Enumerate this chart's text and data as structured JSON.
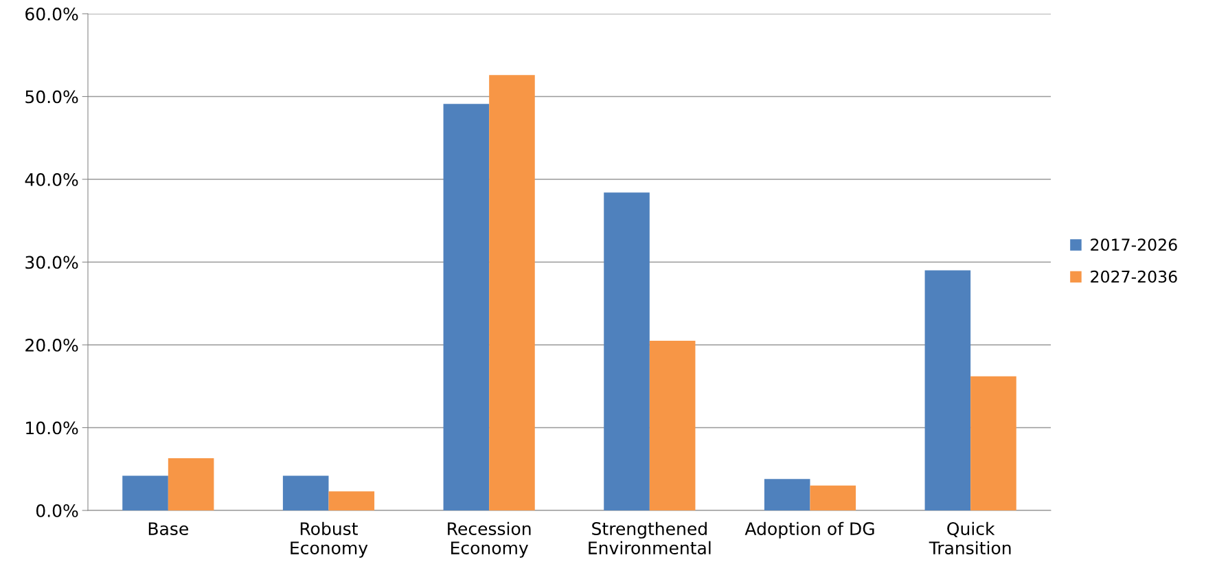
{
  "chart_data": {
    "type": "bar",
    "categories": [
      "Base",
      "Robust\nEconomy",
      "Recession\nEconomy",
      "Strengthened\nEnvironmental",
      "Adoption of DG",
      "Quick\nTransition"
    ],
    "series": [
      {
        "name": "2017-2026",
        "color": "#4f81bd",
        "values": [
          4.2,
          4.2,
          49.1,
          38.4,
          3.8,
          29.0
        ]
      },
      {
        "name": "2027-2036",
        "color": "#f79646",
        "values": [
          6.3,
          2.3,
          52.6,
          20.5,
          3.0,
          16.2
        ]
      }
    ],
    "ylim": [
      0,
      60
    ],
    "yticks": [
      {
        "value": 0,
        "label": "0.0%"
      },
      {
        "value": 10,
        "label": "10.0%"
      },
      {
        "value": 20,
        "label": "20.0%"
      },
      {
        "value": 30,
        "label": "30.0%"
      },
      {
        "value": 40,
        "label": "40.0%"
      },
      {
        "value": 50,
        "label": "50.0%"
      },
      {
        "value": 60,
        "label": "60.0%"
      }
    ],
    "grid": "y",
    "legend": "right"
  }
}
